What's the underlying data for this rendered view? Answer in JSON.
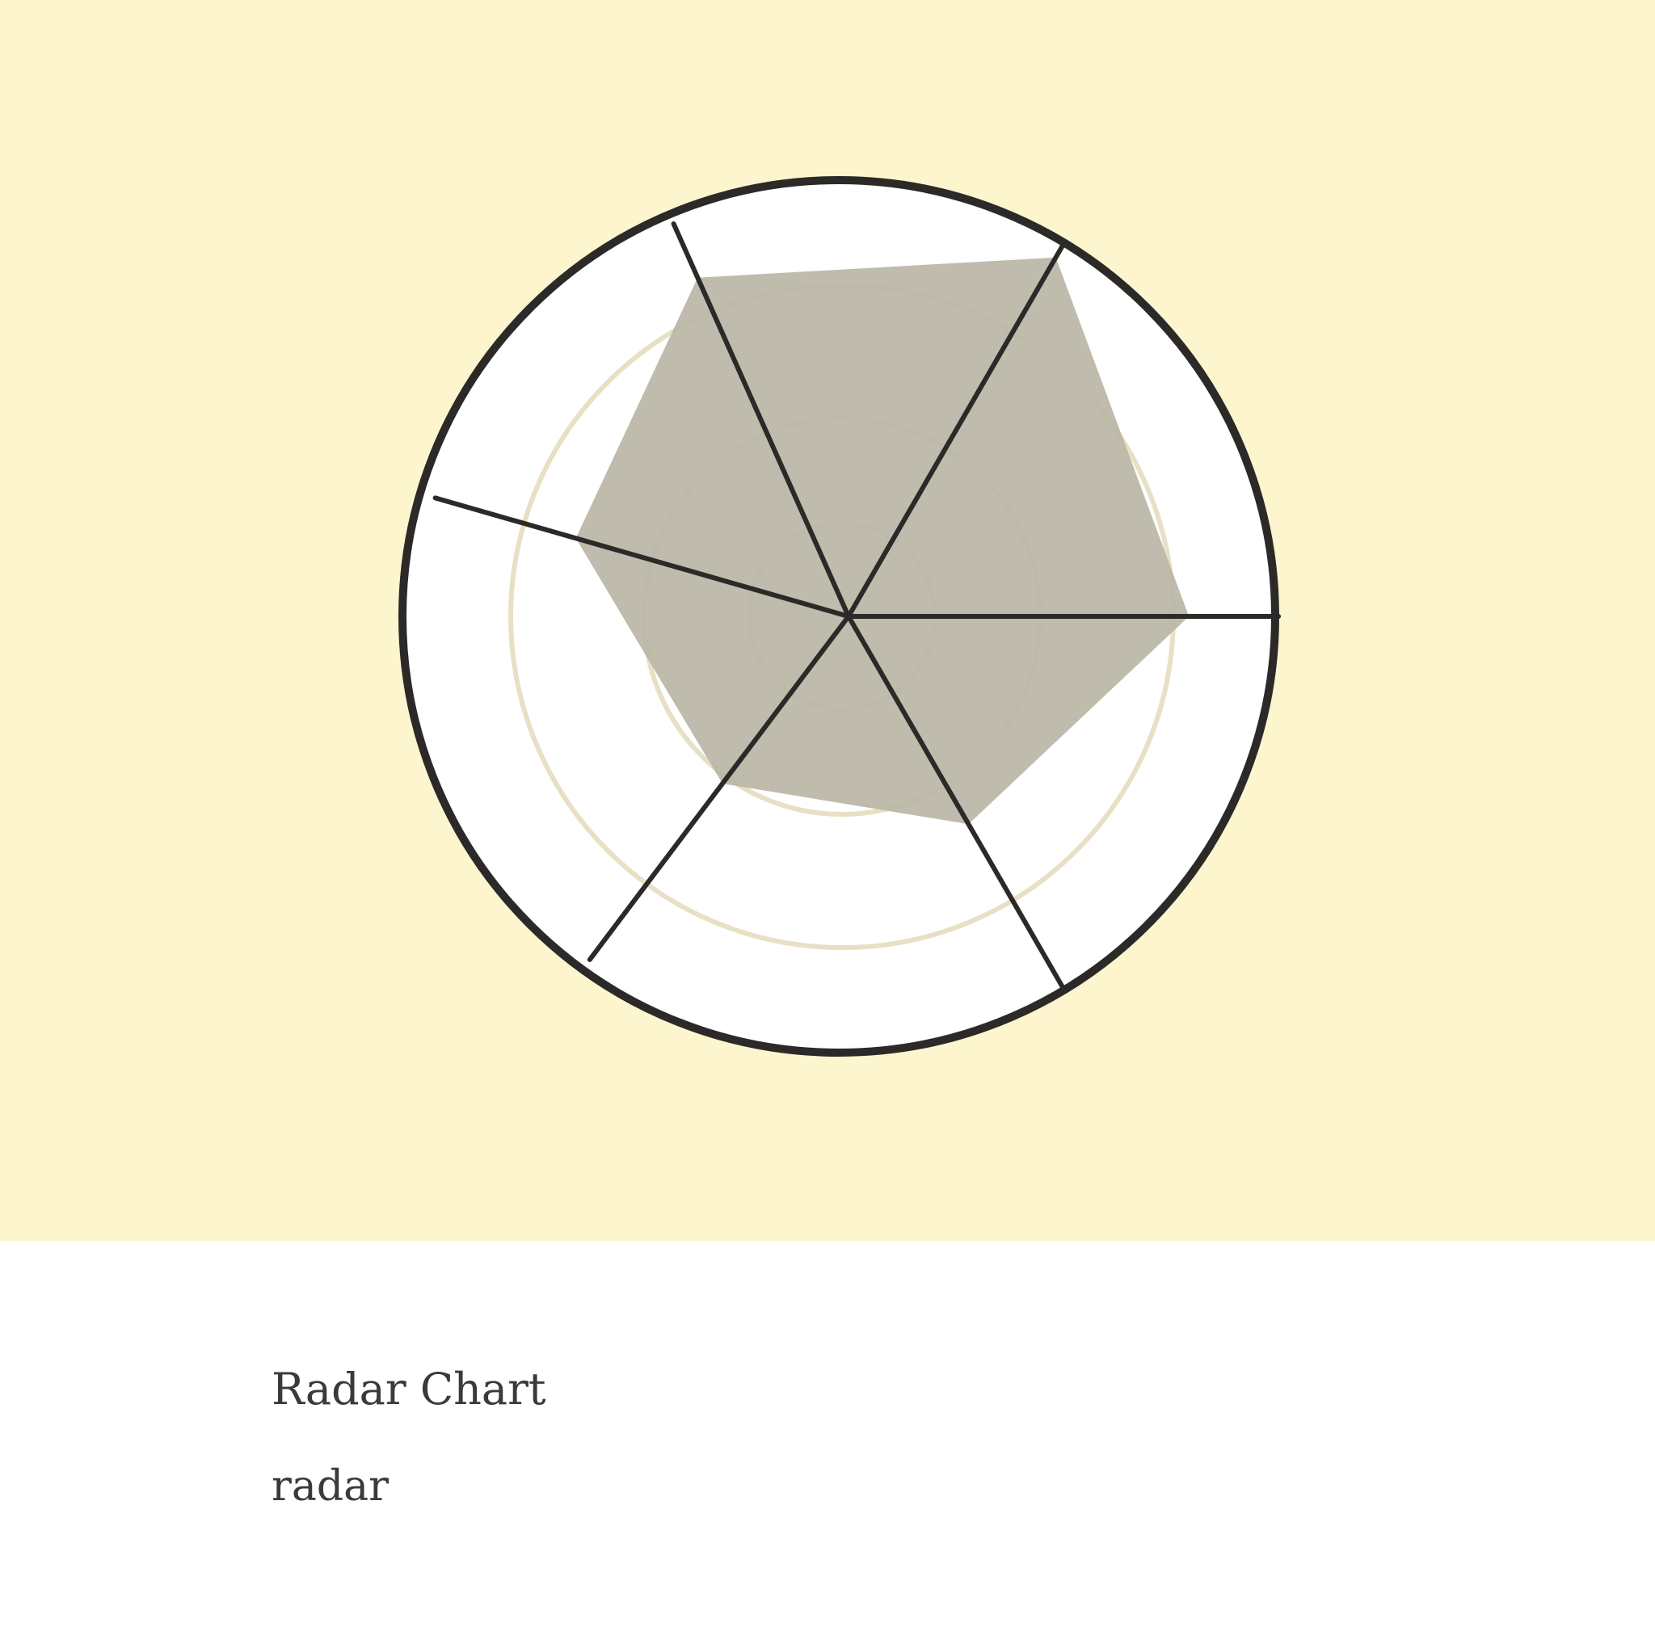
{
  "card": {
    "title": "Radar Chart",
    "subtitle": "radar"
  },
  "illustration": {
    "icon": "radar-chart-icon",
    "colors": {
      "background": "#fdf5cd",
      "disc": "#ffffff",
      "outline": "#2b2a28",
      "rings": "#e8e0c4",
      "fill": "#bcb7a9"
    },
    "axes": 6,
    "rings": 3,
    "levels": [
      0.95,
      0.78,
      0.55,
      0.48,
      0.65,
      0.85
    ]
  }
}
